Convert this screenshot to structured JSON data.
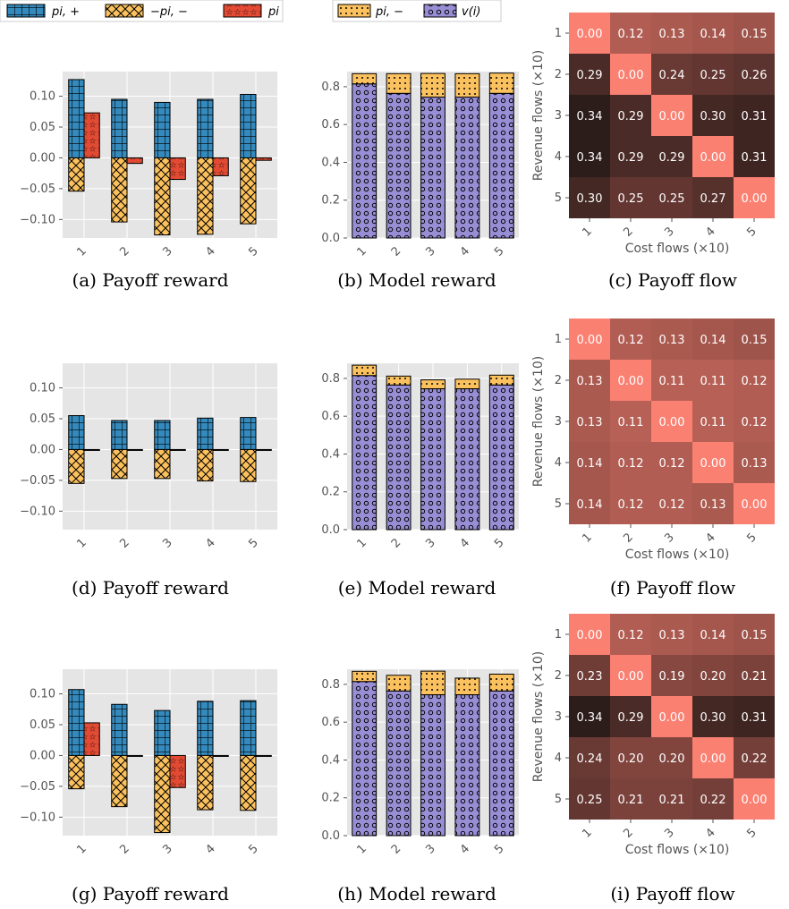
{
  "legend_left": [
    {
      "label": "p_{i,+}",
      "text": "pi, +",
      "pattern": "grid",
      "color": "#348abd"
    },
    {
      "label": "-p_{i,-}",
      "text": "−pi, −",
      "pattern": "cross",
      "color": "#fbc15e"
    },
    {
      "label": "p_i",
      "text": "pi",
      "pattern": "star",
      "color": "#e24a33"
    }
  ],
  "legend_mid": [
    {
      "label": "p_{i,-}",
      "text": "pi, −",
      "pattern": "dots",
      "color": "#fbc15e"
    },
    {
      "label": "v(i)",
      "text": "v(i)",
      "pattern": "circles",
      "color": "#988ed5"
    }
  ],
  "captions": [
    "(a) Payoff reward",
    "(b) Model reward",
    "(c) Payoff flow",
    "(d) Payoff reward",
    "(e) Model reward",
    "(f) Payoff flow",
    "(g) Payoff reward",
    "(h) Model reward",
    "(i) Payoff flow"
  ],
  "chart_data": [
    {
      "type": "bar",
      "panel": "a",
      "categories": [
        "1",
        "2",
        "3",
        "4",
        "5"
      ],
      "ylim": [
        -0.13,
        0.14
      ],
      "yticks": [
        "0.10",
        "0.05",
        "0.00",
        "−0.05",
        "−0.10"
      ],
      "ytick_values": [
        0.1,
        0.05,
        0.0,
        -0.05,
        -0.1
      ],
      "series": [
        {
          "name": "p_{i,+}",
          "values": [
            0.127,
            0.095,
            0.09,
            0.095,
            0.103
          ]
        },
        {
          "name": "-p_{i,-}",
          "values": [
            -0.054,
            -0.104,
            -0.125,
            -0.124,
            -0.107
          ]
        },
        {
          "name": "p_i",
          "values": [
            0.073,
            -0.009,
            -0.035,
            -0.029,
            -0.004
          ]
        }
      ]
    },
    {
      "type": "bar",
      "panel": "b",
      "stacked": true,
      "categories": [
        "1",
        "2",
        "3",
        "4",
        "5"
      ],
      "ylim": [
        0,
        0.88
      ],
      "yticks": [
        "0.8",
        "0.6",
        "0.4",
        "0.2",
        "0.0"
      ],
      "ytick_values": [
        0.8,
        0.6,
        0.4,
        0.2,
        0.0
      ],
      "series": [
        {
          "name": "v(i)",
          "values": [
            0.815,
            0.765,
            0.745,
            0.745,
            0.765
          ]
        },
        {
          "name": "p_{i,-}",
          "values": [
            0.054,
            0.104,
            0.125,
            0.124,
            0.107
          ]
        }
      ]
    },
    {
      "type": "heatmap",
      "panel": "c",
      "xlabel": "Cost flows (×10)",
      "ylabel": "Revenue flows (×10)",
      "rows": [
        "1",
        "2",
        "3",
        "4",
        "5"
      ],
      "cols": [
        "1",
        "2",
        "3",
        "4",
        "5"
      ],
      "values": [
        [
          "0.00",
          "0.12",
          "0.13",
          "0.14",
          "0.15"
        ],
        [
          "0.29",
          "0.00",
          "0.24",
          "0.25",
          "0.26"
        ],
        [
          "0.34",
          "0.29",
          "0.00",
          "0.30",
          "0.31"
        ],
        [
          "0.34",
          "0.29",
          "0.29",
          "0.00",
          "0.31"
        ],
        [
          "0.30",
          "0.25",
          "0.25",
          "0.27",
          "0.00"
        ]
      ]
    },
    {
      "type": "bar",
      "panel": "d",
      "categories": [
        "1",
        "2",
        "3",
        "4",
        "5"
      ],
      "ylim": [
        -0.13,
        0.14
      ],
      "yticks": [
        "0.10",
        "0.05",
        "0.00",
        "−0.05",
        "−0.10"
      ],
      "ytick_values": [
        0.1,
        0.05,
        0.0,
        -0.05,
        -0.1
      ],
      "series": [
        {
          "name": "p_{i,+}",
          "values": [
            0.055,
            0.047,
            0.047,
            0.051,
            0.052
          ]
        },
        {
          "name": "-p_{i,-}",
          "values": [
            -0.055,
            -0.047,
            -0.047,
            -0.051,
            -0.052
          ]
        },
        {
          "name": "p_i",
          "values": [
            0.0,
            0.0,
            0.0,
            0.0,
            0.0
          ]
        }
      ]
    },
    {
      "type": "bar",
      "panel": "e",
      "stacked": true,
      "categories": [
        "1",
        "2",
        "3",
        "4",
        "5"
      ],
      "ylim": [
        0,
        0.88
      ],
      "yticks": [
        "0.8",
        "0.6",
        "0.4",
        "0.2",
        "0.0"
      ],
      "ytick_values": [
        0.8,
        0.6,
        0.4,
        0.2,
        0.0
      ],
      "series": [
        {
          "name": "v(i)",
          "values": [
            0.815,
            0.765,
            0.745,
            0.745,
            0.765
          ]
        },
        {
          "name": "p_{i,-}",
          "values": [
            0.055,
            0.047,
            0.047,
            0.051,
            0.052
          ]
        }
      ]
    },
    {
      "type": "heatmap",
      "panel": "f",
      "xlabel": "Cost flows (×10)",
      "ylabel": "Revenue flows (×10)",
      "rows": [
        "1",
        "2",
        "3",
        "4",
        "5"
      ],
      "cols": [
        "1",
        "2",
        "3",
        "4",
        "5"
      ],
      "values": [
        [
          "0.00",
          "0.12",
          "0.13",
          "0.14",
          "0.15"
        ],
        [
          "0.13",
          "0.00",
          "0.11",
          "0.11",
          "0.12"
        ],
        [
          "0.13",
          "0.11",
          "0.00",
          "0.11",
          "0.12"
        ],
        [
          "0.14",
          "0.12",
          "0.12",
          "0.00",
          "0.13"
        ],
        [
          "0.14",
          "0.12",
          "0.12",
          "0.13",
          "0.00"
        ]
      ]
    },
    {
      "type": "bar",
      "panel": "g",
      "categories": [
        "1",
        "2",
        "3",
        "4",
        "5"
      ],
      "ylim": [
        -0.13,
        0.14
      ],
      "yticks": [
        "0.10",
        "0.05",
        "0.00",
        "−0.05",
        "−0.10"
      ],
      "ytick_values": [
        0.1,
        0.05,
        0.0,
        -0.05,
        -0.1
      ],
      "series": [
        {
          "name": "p_{i,+}",
          "values": [
            0.107,
            0.083,
            0.073,
            0.088,
            0.089
          ]
        },
        {
          "name": "-p_{i,-}",
          "values": [
            -0.054,
            -0.083,
            -0.125,
            -0.088,
            -0.089
          ]
        },
        {
          "name": "p_i",
          "values": [
            0.053,
            0.0,
            -0.052,
            0.0,
            0.0
          ]
        }
      ]
    },
    {
      "type": "bar",
      "panel": "h",
      "stacked": true,
      "categories": [
        "1",
        "2",
        "3",
        "4",
        "5"
      ],
      "ylim": [
        0,
        0.88
      ],
      "yticks": [
        "0.8",
        "0.6",
        "0.4",
        "0.2",
        "0.0"
      ],
      "ytick_values": [
        0.8,
        0.6,
        0.4,
        0.2,
        0.0
      ],
      "series": [
        {
          "name": "v(i)",
          "values": [
            0.815,
            0.765,
            0.745,
            0.745,
            0.765
          ]
        },
        {
          "name": "p_{i,-}",
          "values": [
            0.054,
            0.083,
            0.125,
            0.088,
            0.089
          ]
        }
      ]
    },
    {
      "type": "heatmap",
      "panel": "i",
      "xlabel": "Cost flows (×10)",
      "ylabel": "Revenue flows (×10)",
      "rows": [
        "1",
        "2",
        "3",
        "4",
        "5"
      ],
      "cols": [
        "1",
        "2",
        "3",
        "4",
        "5"
      ],
      "values": [
        [
          "0.00",
          "0.12",
          "0.13",
          "0.14",
          "0.15"
        ],
        [
          "0.23",
          "0.00",
          "0.19",
          "0.20",
          "0.21"
        ],
        [
          "0.34",
          "0.29",
          "0.00",
          "0.30",
          "0.31"
        ],
        [
          "0.24",
          "0.20",
          "0.20",
          "0.00",
          "0.22"
        ],
        [
          "0.25",
          "0.21",
          "0.21",
          "0.22",
          "0.00"
        ]
      ]
    }
  ]
}
